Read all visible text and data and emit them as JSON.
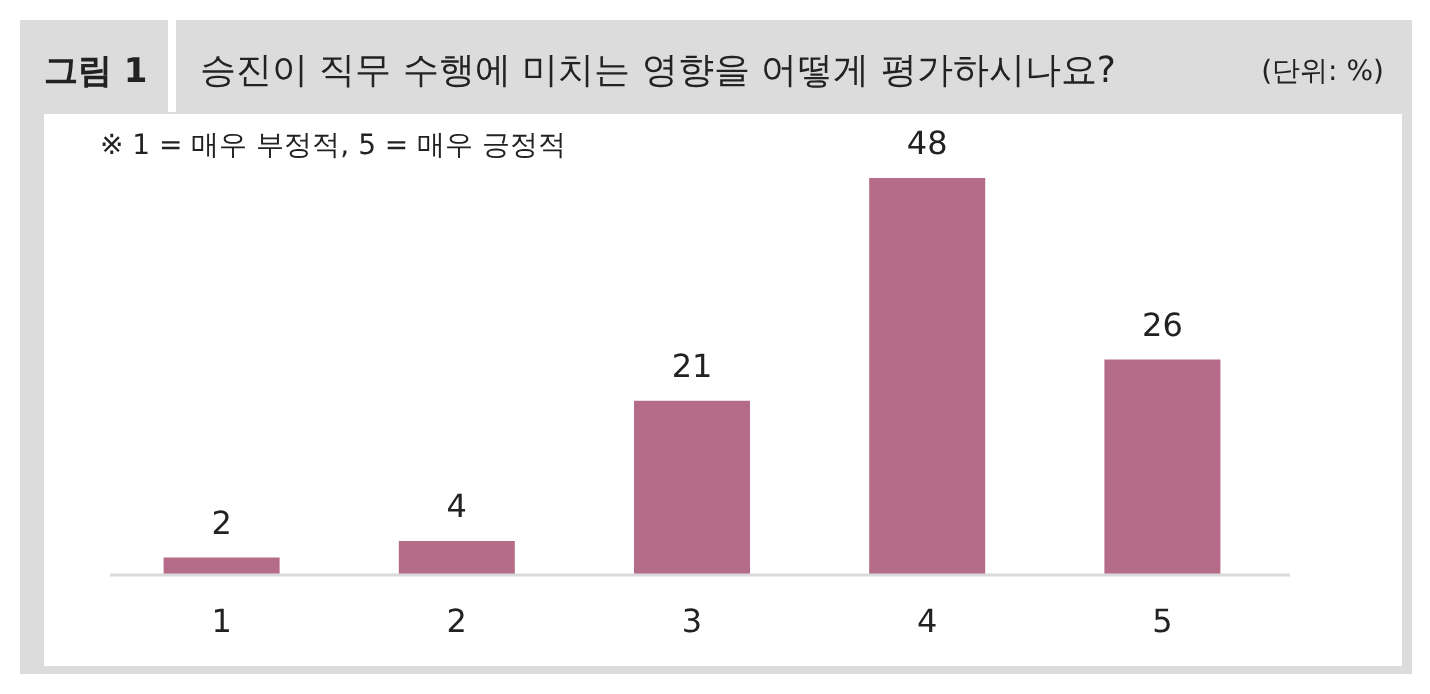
{
  "chart_data": {
    "type": "bar",
    "title": "승진이 직무 수행에 미치는 영향을 어떻게 평가하시나요?",
    "annotations": [
      "그림 1",
      "(단위: %)",
      "※ 1 = 매우 부정적, 5 = 매우 긍정적"
    ],
    "categories": [
      "1",
      "2",
      "3",
      "4",
      "5"
    ],
    "values": [
      2,
      4,
      21,
      48,
      26
    ],
    "color": "#b56c88",
    "data_labels": true
  }
}
